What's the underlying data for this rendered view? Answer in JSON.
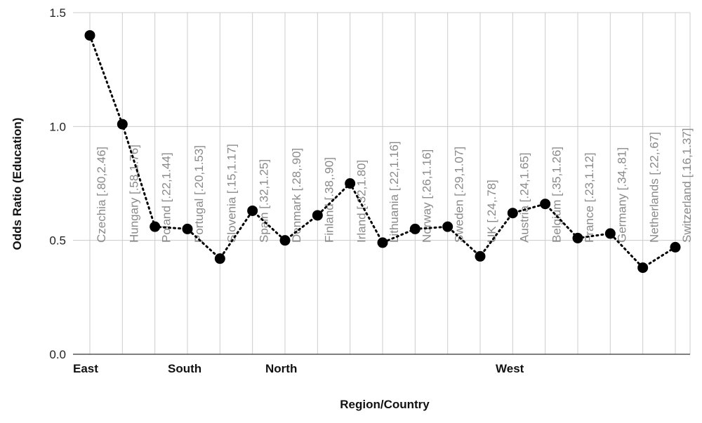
{
  "chart_data": {
    "type": "line",
    "xlabel": "Region/Country",
    "ylabel": "Odds Ratio (Education)",
    "ylim": [
      0,
      1.5
    ],
    "yticks": [
      "0.0",
      "0.5",
      "1.0",
      "1.5"
    ],
    "grid": true,
    "regions": [
      {
        "label": "East",
        "start_index": 0
      },
      {
        "label": "South",
        "start_index": 3
      },
      {
        "label": "North",
        "start_index": 6
      },
      {
        "label": "West",
        "start_index": 12
      }
    ],
    "points": [
      {
        "label": "Czechia [.80,2.46]",
        "value": 1.4
      },
      {
        "label": "Hungary [.58,1.76]",
        "value": 1.01
      },
      {
        "label": "Poland [.22,1.44]",
        "value": 0.56
      },
      {
        "label": "Portugal [.20,1.53]",
        "value": 0.55
      },
      {
        "label": "Slovenia [.15,1.17]",
        "value": 0.42
      },
      {
        "label": "Spain [.32,1.25]",
        "value": 0.63
      },
      {
        "label": "Denmark [.28,.90]",
        "value": 0.5
      },
      {
        "label": "Finland [.38,.90]",
        "value": 0.61
      },
      {
        "label": "Irland [.32,1.80]",
        "value": 0.75
      },
      {
        "label": "Lithuania [.22,1.16]",
        "value": 0.49
      },
      {
        "label": "Norway [.26,1.16]",
        "value": 0.55
      },
      {
        "label": "Sweden [.29,1.07]",
        "value": 0.56
      },
      {
        "label": "UK [.24,.78]",
        "value": 0.43
      },
      {
        "label": "Austria [.24,1.65]",
        "value": 0.62
      },
      {
        "label": "Belgium [.35,1.26]",
        "value": 0.66
      },
      {
        "label": "France [.23,1.12]",
        "value": 0.51
      },
      {
        "label": "Germany [.34,.81]",
        "value": 0.53
      },
      {
        "label": "Netherlands [.22,.67]",
        "value": 0.38
      },
      {
        "label": "Switzerland [.16,1.37]",
        "value": 0.47
      }
    ],
    "line_color": "#000000",
    "label_color": "#8a8a8a",
    "grid_color": "#cccccc"
  }
}
